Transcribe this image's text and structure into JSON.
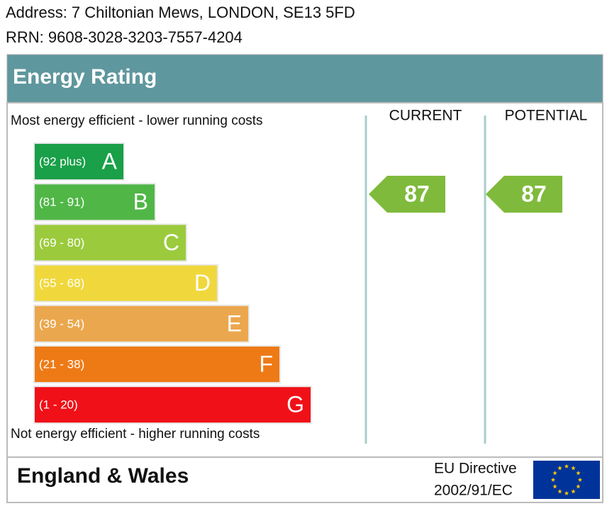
{
  "address": "Address: 7 Chiltonian Mews, LONDON, SE13 5FD",
  "rrn": "RRN: 9608-3028-3203-7557-4204",
  "title": "Energy Rating",
  "top_note": "Most energy efficient - lower running costs",
  "bottom_note": "Not energy efficient - higher running costs",
  "bands": [
    {
      "range": "(92 plus)",
      "letter": "A",
      "color": "#19a048"
    },
    {
      "range": "(81 - 91)",
      "letter": "B",
      "color": "#50b747"
    },
    {
      "range": "(69 - 80)",
      "letter": "C",
      "color": "#9bcb3c"
    },
    {
      "range": "(55 - 68)",
      "letter": "D",
      "color": "#f0d83c"
    },
    {
      "range": "(39 - 54)",
      "letter": "E",
      "color": "#eba74d"
    },
    {
      "range": "(21 - 38)",
      "letter": "F",
      "color": "#ee7a15"
    },
    {
      "range": "(1 - 20)",
      "letter": "G",
      "color": "#f01018"
    }
  ],
  "columns": {
    "current": "CURRENT",
    "potential": "POTENTIAL"
  },
  "current": 87,
  "potential": 87,
  "arrow_color": "#7fba3c",
  "footer": {
    "region": "England & Wales",
    "directive": [
      "EU Directive",
      "2002/91/EC"
    ]
  }
}
